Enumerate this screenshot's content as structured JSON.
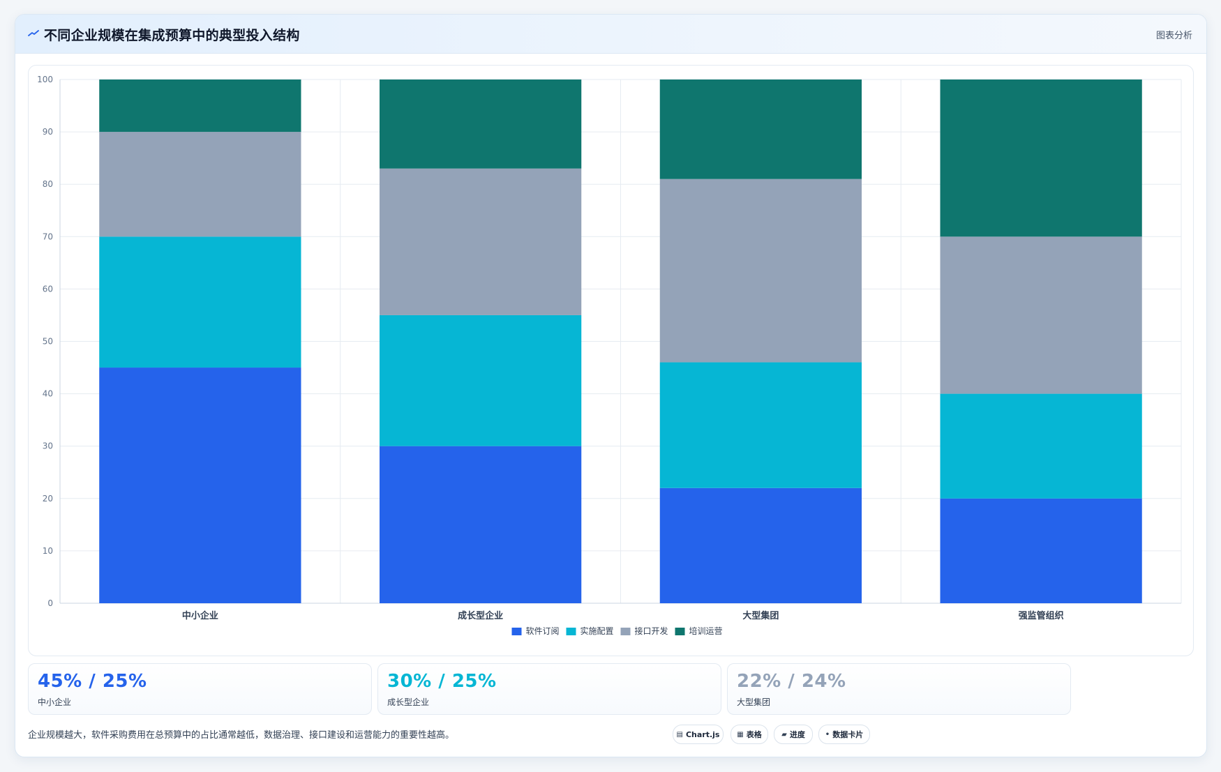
{
  "header": {
    "title_icon": "trend-line-icon",
    "title": "不同企业规模在集成预算中的典型投入结构",
    "action": "图表分析"
  },
  "chart_data": {
    "type": "bar",
    "stacked": true,
    "categories": [
      "中小企业",
      "成长型企业",
      "大型集团",
      "强监管组织"
    ],
    "series": [
      {
        "name": "软件订阅",
        "values": [
          45,
          30,
          22,
          20
        ],
        "color": "#2563eb"
      },
      {
        "name": "实施配置",
        "values": [
          25,
          25,
          24,
          20
        ],
        "color": "#06b6d4"
      },
      {
        "name": "接口开发",
        "values": [
          20,
          28,
          35,
          30
        ],
        "color": "#94a3b8"
      },
      {
        "name": "培训运营",
        "values": [
          10,
          17,
          19,
          30
        ],
        "color": "#0f766e"
      }
    ],
    "ylim": [
      0,
      100
    ],
    "yticks": [
      0,
      10,
      20,
      30,
      40,
      50,
      60,
      70,
      80,
      90,
      100
    ],
    "grid": true,
    "legend": "bottom-center"
  },
  "stats": [
    {
      "value": "45% / 25%",
      "label": "中小企业",
      "color": "#2563eb"
    },
    {
      "value": "30% / 25%",
      "label": "成长型企业",
      "color": "#06b6d4"
    },
    {
      "value": "22% / 24%",
      "label": "大型集团",
      "color": "#94a3b8"
    }
  ],
  "footer": {
    "note": "企业规模越大，软件采购费用在总预算中的占比通常越低，数据治理、接口建设和运营能力的重要性越高。",
    "pills": [
      {
        "icon": "chart-icon",
        "glyph": "▤",
        "label": "Chart.js"
      },
      {
        "icon": "table-icon",
        "glyph": "▦",
        "label": "表格"
      },
      {
        "icon": "progress-icon",
        "glyph": "▰",
        "label": "进度"
      },
      {
        "icon": "card-icon",
        "glyph": "•",
        "label": "数据卡片"
      }
    ]
  }
}
